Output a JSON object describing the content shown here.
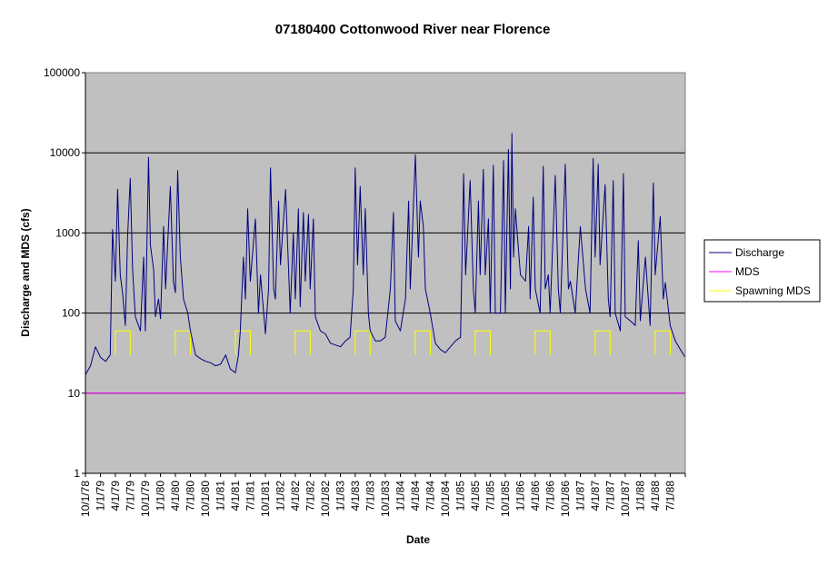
{
  "chart_data": {
    "type": "line",
    "title": "07180400 Cottonwood River near Florence",
    "xlabel": "Date",
    "ylabel": "Discharge and MDS (cfs)",
    "y_scale": "log",
    "ylim": [
      1,
      100000
    ],
    "y_ticks": [
      "1",
      "10",
      "100",
      "1000",
      "10000",
      "100000"
    ],
    "x_tick_labels": [
      "10/1/78",
      "1/1/79",
      "4/1/79",
      "7/1/79",
      "10/1/79",
      "1/1/80",
      "4/1/80",
      "7/1/80",
      "10/1/80",
      "1/1/81",
      "4/1/81",
      "7/1/81",
      "10/1/81",
      "1/1/82",
      "4/1/82",
      "7/1/82",
      "10/1/82",
      "1/1/83",
      "4/1/83",
      "7/1/83",
      "10/1/83",
      "1/1/84",
      "4/1/84",
      "7/1/84",
      "10/1/84",
      "1/1/85",
      "4/1/85",
      "7/1/85",
      "10/1/85",
      "1/1/86",
      "4/1/86",
      "7/1/86",
      "10/1/86",
      "1/1/87",
      "4/1/87",
      "7/1/87",
      "10/1/87",
      "1/1/88",
      "4/1/88",
      "7/1/88"
    ],
    "xlim": [
      "10/1/78",
      "10/1/88"
    ],
    "plot_background": "#c0c0c0",
    "gridlines": "horizontal major",
    "legend_position": "right",
    "series": [
      {
        "name": "Discharge",
        "color": "#000080",
        "points": [
          [
            "10/1/78",
            17
          ],
          [
            "11/1/78",
            22
          ],
          [
            "12/1/78",
            38
          ],
          [
            "1/1/79",
            28
          ],
          [
            "2/1/79",
            25
          ],
          [
            "3/1/79",
            30
          ],
          [
            "3/15/79",
            1100
          ],
          [
            "4/1/79",
            250
          ],
          [
            "4/15/79",
            3500
          ],
          [
            "5/1/79",
            300
          ],
          [
            "5/15/79",
            180
          ],
          [
            "6/1/79",
            70
          ],
          [
            "6/15/79",
            900
          ],
          [
            "7/1/79",
            4800
          ],
          [
            "7/15/79",
            350
          ],
          [
            "8/1/79",
            90
          ],
          [
            "9/1/79",
            60
          ],
          [
            "9/20/79",
            500
          ],
          [
            "10/1/79",
            60
          ],
          [
            "10/20/79",
            8800
          ],
          [
            "11/1/79",
            700
          ],
          [
            "11/20/79",
            350
          ],
          [
            "12/1/79",
            90
          ],
          [
            "12/20/79",
            150
          ],
          [
            "1/1/80",
            85
          ],
          [
            "1/20/80",
            1200
          ],
          [
            "2/1/80",
            200
          ],
          [
            "3/1/80",
            3800
          ],
          [
            "3/20/80",
            250
          ],
          [
            "4/1/80",
            180
          ],
          [
            "4/15/80",
            6000
          ],
          [
            "5/1/80",
            500
          ],
          [
            "5/20/80",
            150
          ],
          [
            "6/15/80",
            100
          ],
          [
            "7/1/80",
            60
          ],
          [
            "8/1/80",
            30
          ],
          [
            "9/1/80",
            27
          ],
          [
            "10/1/80",
            25
          ],
          [
            "11/1/80",
            24
          ],
          [
            "12/1/80",
            22
          ],
          [
            "1/1/81",
            23
          ],
          [
            "2/1/81",
            30
          ],
          [
            "3/1/81",
            20
          ],
          [
            "4/1/81",
            18
          ],
          [
            "4/20/81",
            30
          ],
          [
            "5/1/81",
            60
          ],
          [
            "5/20/81",
            500
          ],
          [
            "6/1/81",
            150
          ],
          [
            "6/15/81",
            2000
          ],
          [
            "7/1/81",
            250
          ],
          [
            "8/1/81",
            1500
          ],
          [
            "8/20/81",
            100
          ],
          [
            "9/1/81",
            300
          ],
          [
            "10/1/81",
            55
          ],
          [
            "10/20/81",
            200
          ],
          [
            "11/1/81",
            6500
          ],
          [
            "11/20/81",
            200
          ],
          [
            "12/1/81",
            150
          ],
          [
            "12/20/81",
            2500
          ],
          [
            "1/1/82",
            400
          ],
          [
            "2/1/82",
            3500
          ],
          [
            "3/1/82",
            100
          ],
          [
            "3/20/82",
            1000
          ],
          [
            "4/1/82",
            150
          ],
          [
            "4/20/82",
            2000
          ],
          [
            "5/1/82",
            120
          ],
          [
            "5/20/82",
            1800
          ],
          [
            "6/1/82",
            250
          ],
          [
            "6/20/82",
            1700
          ],
          [
            "7/1/82",
            200
          ],
          [
            "7/20/82",
            1500
          ],
          [
            "8/1/82",
            90
          ],
          [
            "9/1/82",
            60
          ],
          [
            "10/1/82",
            55
          ],
          [
            "11/1/82",
            42
          ],
          [
            "12/1/82",
            40
          ],
          [
            "1/1/83",
            38
          ],
          [
            "2/1/83",
            45
          ],
          [
            "3/1/83",
            50
          ],
          [
            "3/20/83",
            200
          ],
          [
            "4/1/83",
            6500
          ],
          [
            "4/15/83",
            400
          ],
          [
            "5/1/83",
            3800
          ],
          [
            "5/20/83",
            300
          ],
          [
            "6/1/83",
            2000
          ],
          [
            "6/20/83",
            100
          ],
          [
            "7/1/83",
            60
          ],
          [
            "8/1/83",
            45
          ],
          [
            "9/1/83",
            45
          ],
          [
            "10/1/83",
            50
          ],
          [
            "11/1/83",
            200
          ],
          [
            "11/20/83",
            1800
          ],
          [
            "12/1/83",
            80
          ],
          [
            "1/1/84",
            60
          ],
          [
            "2/1/84",
            150
          ],
          [
            "2/20/84",
            2500
          ],
          [
            "3/1/84",
            200
          ],
          [
            "4/1/84",
            9500
          ],
          [
            "4/20/84",
            500
          ],
          [
            "5/1/84",
            2500
          ],
          [
            "5/20/84",
            1200
          ],
          [
            "6/1/84",
            200
          ],
          [
            "7/1/84",
            100
          ],
          [
            "8/1/84",
            42
          ],
          [
            "9/1/84",
            35
          ],
          [
            "10/1/84",
            32
          ],
          [
            "11/1/84",
            38
          ],
          [
            "12/1/84",
            45
          ],
          [
            "1/1/85",
            50
          ],
          [
            "1/20/85",
            5500
          ],
          [
            "2/1/85",
            300
          ],
          [
            "3/1/85",
            4500
          ],
          [
            "3/20/85",
            200
          ],
          [
            "4/1/85",
            100
          ],
          [
            "4/20/85",
            2500
          ],
          [
            "5/1/85",
            300
          ],
          [
            "5/20/85",
            6200
          ],
          [
            "6/1/85",
            300
          ],
          [
            "6/20/85",
            1500
          ],
          [
            "7/1/85",
            100
          ],
          [
            "7/20/85",
            7000
          ],
          [
            "8/1/85",
            100
          ],
          [
            "9/1/85",
            100
          ],
          [
            "9/20/85",
            8000
          ],
          [
            "10/1/85",
            100
          ],
          [
            "10/20/85",
            11000
          ],
          [
            "11/1/85",
            200
          ],
          [
            "11/10/85",
            17500
          ],
          [
            "11/20/85",
            500
          ],
          [
            "12/1/85",
            2000
          ],
          [
            "1/1/86",
            300
          ],
          [
            "2/1/86",
            250
          ],
          [
            "2/20/86",
            1200
          ],
          [
            "3/1/86",
            150
          ],
          [
            "3/20/86",
            2800
          ],
          [
            "4/1/86",
            200
          ],
          [
            "5/1/86",
            100
          ],
          [
            "5/20/86",
            6800
          ],
          [
            "6/1/86",
            200
          ],
          [
            "6/20/86",
            300
          ],
          [
            "7/1/86",
            100
          ],
          [
            "8/1/86",
            5200
          ],
          [
            "8/20/86",
            200
          ],
          [
            "9/1/86",
            100
          ],
          [
            "10/1/86",
            7200
          ],
          [
            "10/20/86",
            200
          ],
          [
            "11/1/86",
            250
          ],
          [
            "12/1/86",
            100
          ],
          [
            "1/1/87",
            1200
          ],
          [
            "2/1/87",
            200
          ],
          [
            "3/1/87",
            100
          ],
          [
            "3/20/87",
            8500
          ],
          [
            "4/1/87",
            500
          ],
          [
            "4/20/87",
            7200
          ],
          [
            "5/1/87",
            400
          ],
          [
            "6/1/87",
            4000
          ],
          [
            "6/20/87",
            150
          ],
          [
            "7/1/87",
            90
          ],
          [
            "7/20/87",
            4500
          ],
          [
            "8/1/87",
            100
          ],
          [
            "9/1/87",
            60
          ],
          [
            "9/20/87",
            5500
          ],
          [
            "10/1/87",
            90
          ],
          [
            "11/1/87",
            80
          ],
          [
            "12/1/87",
            70
          ],
          [
            "12/20/87",
            800
          ],
          [
            "1/1/88",
            80
          ],
          [
            "2/1/88",
            500
          ],
          [
            "3/1/88",
            70
          ],
          [
            "3/20/88",
            4200
          ],
          [
            "4/1/88",
            300
          ],
          [
            "5/1/88",
            1600
          ],
          [
            "5/20/88",
            150
          ],
          [
            "6/1/88",
            240
          ],
          [
            "7/1/88",
            70
          ],
          [
            "8/1/88",
            45
          ],
          [
            "9/1/88",
            35
          ],
          [
            "10/1/88",
            28
          ]
        ]
      },
      {
        "name": "MDS",
        "color": "#ff00ff",
        "points": [
          [
            "10/1/78",
            10
          ],
          [
            "10/1/88",
            10
          ]
        ]
      },
      {
        "name": "Spawning MDS",
        "color": "#ffff00",
        "segments": [
          {
            "start": "4/1/79",
            "end": "7/1/79",
            "low": 30,
            "high": 60
          },
          {
            "start": "4/1/80",
            "end": "7/1/80",
            "low": 30,
            "high": 60
          },
          {
            "start": "4/1/81",
            "end": "7/1/81",
            "low": 30,
            "high": 60
          },
          {
            "start": "4/1/82",
            "end": "7/1/82",
            "low": 30,
            "high": 60
          },
          {
            "start": "4/1/83",
            "end": "7/1/83",
            "low": 30,
            "high": 60
          },
          {
            "start": "4/1/84",
            "end": "7/1/84",
            "low": 30,
            "high": 60
          },
          {
            "start": "4/1/85",
            "end": "7/1/85",
            "low": 30,
            "high": 60
          },
          {
            "start": "4/1/86",
            "end": "7/1/86",
            "low": 30,
            "high": 60
          },
          {
            "start": "4/1/87",
            "end": "7/1/87",
            "low": 30,
            "high": 60
          },
          {
            "start": "4/1/88",
            "end": "7/1/88",
            "low": 30,
            "high": 60
          }
        ]
      }
    ]
  }
}
